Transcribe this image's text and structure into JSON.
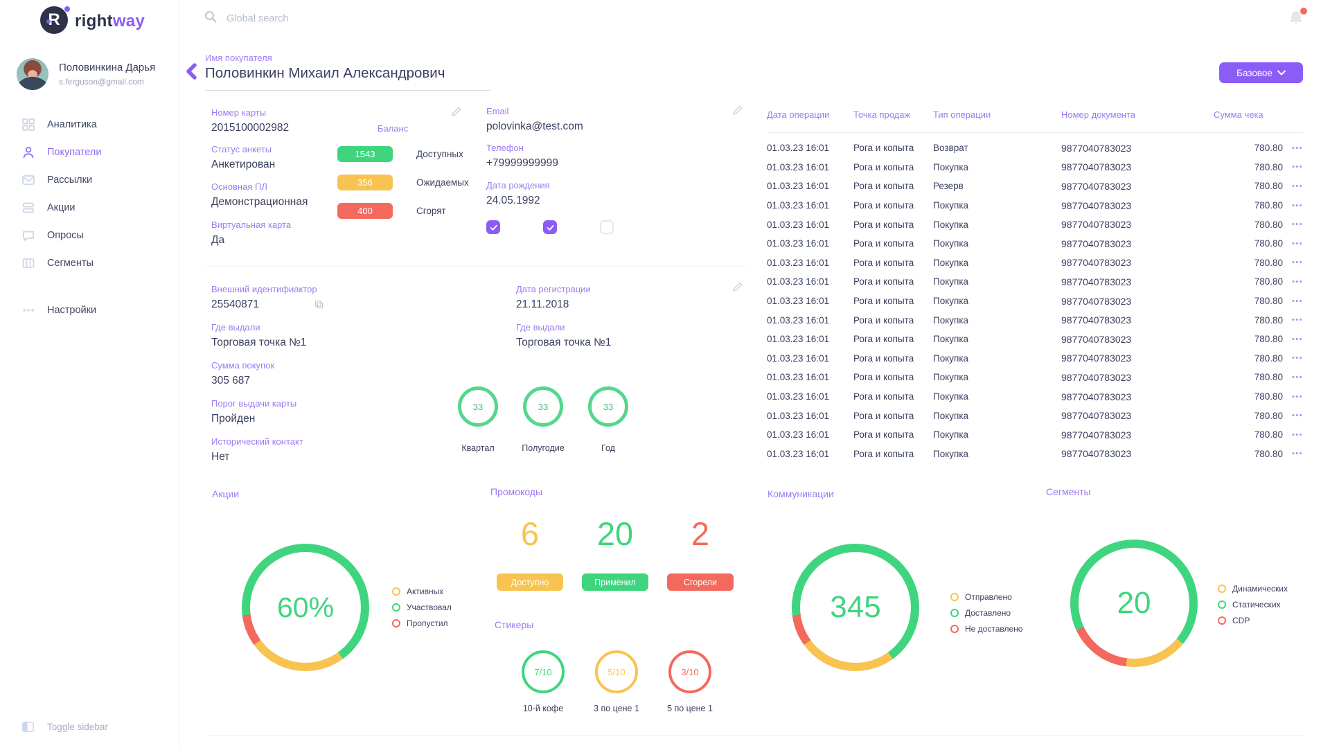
{
  "brand": {
    "name_primary": "right",
    "name_secondary": "way"
  },
  "topbar": {
    "search_placeholder": "Global search"
  },
  "user": {
    "name": "Половинкина Дарья",
    "email": "s.ferguson@gmail.com"
  },
  "sidebar": {
    "items": [
      {
        "id": "analytics",
        "label": "Аналитика",
        "icon": "grid",
        "active": false
      },
      {
        "id": "customers",
        "label": "Покупатели",
        "icon": "person",
        "active": true
      },
      {
        "id": "mailings",
        "label": "Рассылки",
        "icon": "mail",
        "active": false
      },
      {
        "id": "promotions",
        "label": "Акции",
        "icon": "layers",
        "active": false
      },
      {
        "id": "surveys",
        "label": "Опросы",
        "icon": "chat",
        "active": false
      },
      {
        "id": "segments",
        "label": "Сегменты",
        "icon": "columns",
        "active": false
      }
    ],
    "settings_label": "Настройки",
    "toggle_label": "Toggle sidebar"
  },
  "header": {
    "field_label": "Имя покупателя",
    "customer_name": "Половинкин Михаил Александрович",
    "view_button_label": "Базовое"
  },
  "colors": {
    "purple": "#8b5cf6",
    "green": "#3fd57e",
    "yellow": "#f8c351",
    "red": "#f4695e"
  },
  "profile": {
    "card_number": {
      "label": "Номер карты",
      "value": "2015100002982"
    },
    "survey_status": {
      "label": "Статус анкеты",
      "value": "Анкетирован"
    },
    "main_program": {
      "label": "Основная ПЛ",
      "value": "Демонстрационная"
    },
    "virtual_card": {
      "label": "Виртуальная карта",
      "value": "Да"
    },
    "balance": {
      "label": "Баланс",
      "items": [
        {
          "value": "1543",
          "label": "Доступных",
          "color": "#3fd57e"
        },
        {
          "value": "356",
          "label": "Ожидаемых",
          "color": "#f8c351"
        },
        {
          "value": "400",
          "label": "Сгорят",
          "color": "#f4695e"
        }
      ]
    },
    "email": {
      "label": "Email",
      "value": "polovinka@test.com"
    },
    "phone": {
      "label": "Телефон",
      "value": "+79999999999"
    },
    "birth_date": {
      "label": "Дата рождения",
      "value": "24.05.1992"
    },
    "checkboxes": [
      {
        "checked": true
      },
      {
        "checked": true
      },
      {
        "checked": false
      }
    ]
  },
  "details": {
    "external_id": {
      "label": "Внешний идентифиактор",
      "value": "25540871"
    },
    "registration_date": {
      "label": "Дата регистрации",
      "value": "21.11.2018"
    },
    "issued_at_1": {
      "label": "Где выдали",
      "value": "Торговая точка №1"
    },
    "issued_at_2": {
      "label": "Где выдали",
      "value": "Торговая точка №1"
    },
    "purchase_sum": {
      "label": "Сумма покупок",
      "value": "305 687"
    },
    "card_threshold": {
      "label": "Порог выдачи карты",
      "value": "Пройден"
    },
    "historical_contact": {
      "label": "Исторический контакт",
      "value": "Нет"
    },
    "period_stats": [
      {
        "value": "33",
        "label": "Квартал"
      },
      {
        "value": "33",
        "label": "Полугодие"
      },
      {
        "value": "33",
        "label": "Год"
      }
    ]
  },
  "transactions": {
    "columns": [
      "Дата операции",
      "Точка продаж",
      "Тип операции",
      "Номер документа",
      "Сумма чека"
    ],
    "rows": [
      {
        "date": "01.03.23 16:01",
        "store": "Рога и копыта",
        "type": "Возврат",
        "doc": "9877040783023",
        "amount": "780.80"
      },
      {
        "date": "01.03.23 16:01",
        "store": "Рога и копыта",
        "type": "Покупка",
        "doc": "9877040783023",
        "amount": "780.80"
      },
      {
        "date": "01.03.23 16:01",
        "store": "Рога и копыта",
        "type": "Резерв",
        "doc": "9877040783023",
        "amount": "780.80"
      },
      {
        "date": "01.03.23 16:01",
        "store": "Рога и копыта",
        "type": "Покупка",
        "doc": "9877040783023",
        "amount": "780.80"
      },
      {
        "date": "01.03.23 16:01",
        "store": "Рога и копыта",
        "type": "Покупка",
        "doc": "9877040783023",
        "amount": "780.80"
      },
      {
        "date": "01.03.23 16:01",
        "store": "Рога и копыта",
        "type": "Покупка",
        "doc": "9877040783023",
        "amount": "780.80"
      },
      {
        "date": "01.03.23 16:01",
        "store": "Рога и копыта",
        "type": "Покупка",
        "doc": "9877040783023",
        "amount": "780.80"
      },
      {
        "date": "01.03.23 16:01",
        "store": "Рога и копыта",
        "type": "Покупка",
        "doc": "9877040783023",
        "amount": "780.80"
      },
      {
        "date": "01.03.23 16:01",
        "store": "Рога и копыта",
        "type": "Покупка",
        "doc": "9877040783023",
        "amount": "780.80"
      },
      {
        "date": "01.03.23 16:01",
        "store": "Рога и копыта",
        "type": "Покупка",
        "doc": "9877040783023",
        "amount": "780.80"
      },
      {
        "date": "01.03.23 16:01",
        "store": "Рога и копыта",
        "type": "Покупка",
        "doc": "9877040783023",
        "amount": "780.80"
      },
      {
        "date": "01.03.23 16:01",
        "store": "Рога и копыта",
        "type": "Покупка",
        "doc": "9877040783023",
        "amount": "780.80"
      },
      {
        "date": "01.03.23 16:01",
        "store": "Рога и копыта",
        "type": "Покупка",
        "doc": "9877040783023",
        "amount": "780.80"
      },
      {
        "date": "01.03.23 16:01",
        "store": "Рога и копыта",
        "type": "Покупка",
        "doc": "9877040783023",
        "amount": "780.80"
      },
      {
        "date": "01.03.23 16:01",
        "store": "Рога и копыта",
        "type": "Покупка",
        "doc": "9877040783023",
        "amount": "780.80"
      },
      {
        "date": "01.03.23 16:01",
        "store": "Рога и копыта",
        "type": "Покупка",
        "doc": "9877040783023",
        "amount": "780.80"
      },
      {
        "date": "01.03.23 16:01",
        "store": "Рога и копыта",
        "type": "Покупка",
        "doc": "9877040783023",
        "amount": "780.80"
      }
    ],
    "row_actions": "•••"
  },
  "promotions": {
    "title": "Акции",
    "center_value": "60%",
    "segments": [
      {
        "color": "#3fd57e",
        "from": 0,
        "to": 40
      },
      {
        "color": "#f8c351",
        "from": 40,
        "to": 65
      },
      {
        "color": "#f4695e",
        "from": 65,
        "to": 73
      },
      {
        "color": "#3fd57e",
        "from": 73,
        "to": 100
      }
    ],
    "legend": [
      {
        "label": "Активных",
        "color": "#f8c351"
      },
      {
        "label": "Участвовал",
        "color": "#3fd57e"
      },
      {
        "label": "Пропустил",
        "color": "#f4695e"
      }
    ]
  },
  "promocodes": {
    "title": "Промокоды",
    "items": [
      {
        "value": "6",
        "label": "Доступно",
        "color": "#f8c351"
      },
      {
        "value": "20",
        "label": "Применил",
        "color": "#3fd57e"
      },
      {
        "value": "2",
        "label": "Сгорели",
        "color": "#f4695e"
      }
    ]
  },
  "stickers": {
    "title": "Стикеры",
    "items": [
      {
        "value": "7/10",
        "label": "10-й кофе",
        "color": "#3fd57e"
      },
      {
        "value": "5/10",
        "label": "3 по цене 1",
        "color": "#f8c351"
      },
      {
        "value": "3/10",
        "label": "5 по цене 1",
        "color": "#f4695e"
      }
    ]
  },
  "communications": {
    "title": "Коммуникации",
    "center_value": "345",
    "segments": [
      {
        "color": "#3fd57e",
        "from": 0,
        "to": 40
      },
      {
        "color": "#f8c351",
        "from": 40,
        "to": 65
      },
      {
        "color": "#f4695e",
        "from": 65,
        "to": 73
      },
      {
        "color": "#3fd57e",
        "from": 73,
        "to": 100
      }
    ],
    "legend": [
      {
        "label": "Отправлено",
        "color": "#f8c351"
      },
      {
        "label": "Доставлено",
        "color": "#3fd57e"
      },
      {
        "label": "Не доставлено",
        "color": "#f4695e"
      }
    ]
  },
  "segments_card": {
    "title": "Сегменты",
    "center_value": "20",
    "segments": [
      {
        "color": "#3fd57e",
        "from": 0,
        "to": 36
      },
      {
        "color": "#f8c351",
        "from": 36,
        "to": 52
      },
      {
        "color": "#f4695e",
        "from": 52,
        "to": 68
      },
      {
        "color": "#3fd57e",
        "from": 68,
        "to": 100
      }
    ],
    "legend": [
      {
        "label": "Динамических",
        "color": "#f8c351"
      },
      {
        "label": "Статических",
        "color": "#3fd57e"
      },
      {
        "label": "CDP",
        "color": "#f4695e"
      }
    ]
  }
}
